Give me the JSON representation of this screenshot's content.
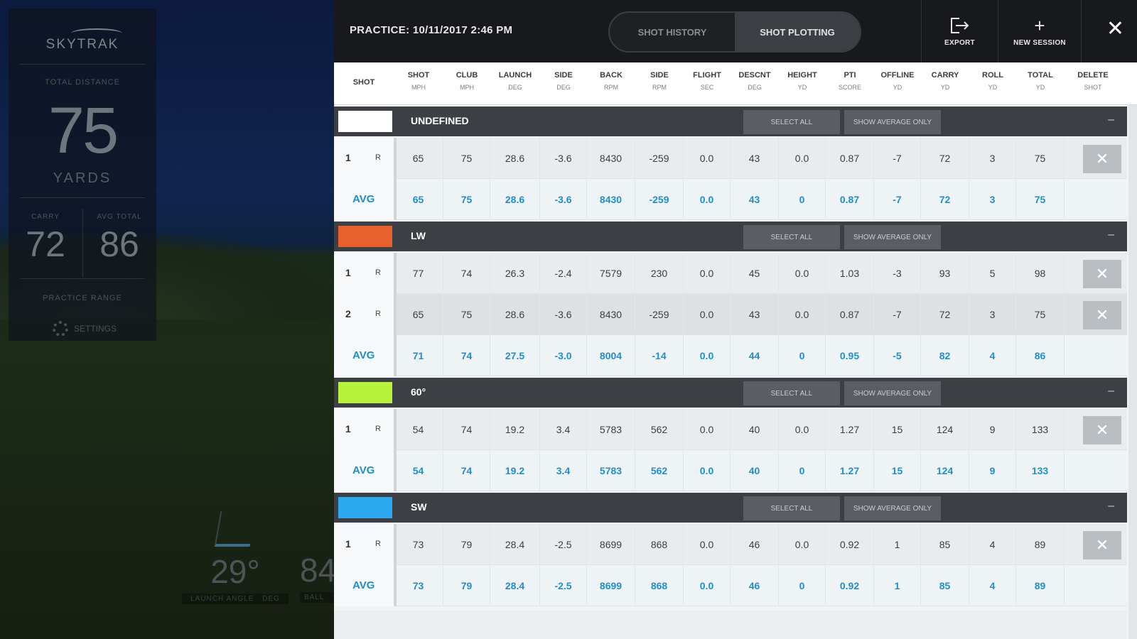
{
  "stats": {
    "logo": "SKYTRAK",
    "total_label": "TOTAL DISTANCE",
    "total_value": "75",
    "total_unit": "YARDS",
    "carry_label": "CARRY",
    "carry_value": "72",
    "avg_total_label": "AVG TOTAL",
    "avg_total_value": "86",
    "mode_label": "PRACTICE RANGE",
    "settings_label": "SETTINGS"
  },
  "dials": {
    "angle_value": "29°",
    "angle_label": "LAUNCH ANGLE · DEG",
    "second_value": "84",
    "second_label": "BALL"
  },
  "header": {
    "title": "PRACTICE: 10/11/2017 2:46 PM",
    "tab_history": "SHOT HISTORY",
    "tab_plotting": "SHOT PLOTTING",
    "export_label": "EXPORT",
    "new_session_label": "NEW SESSION",
    "export_icon": "export-icon",
    "plus_icon": "plus-icon",
    "close_icon": "close-icon"
  },
  "columns": [
    {
      "title": "SHOT",
      "unit": ""
    },
    {
      "title": "SHOT",
      "unit": "MPH"
    },
    {
      "title": "CLUB",
      "unit": "MPH"
    },
    {
      "title": "LAUNCH",
      "unit": "DEG"
    },
    {
      "title": "SIDE",
      "unit": "DEG"
    },
    {
      "title": "BACK",
      "unit": "RPM"
    },
    {
      "title": "SIDE",
      "unit": "RPM"
    },
    {
      "title": "FLIGHT",
      "unit": "SEC"
    },
    {
      "title": "DESCNT",
      "unit": "DEG"
    },
    {
      "title": "HEIGHT",
      "unit": "YD"
    },
    {
      "title": "PTI",
      "unit": "SCORE"
    },
    {
      "title": "OFFLINE",
      "unit": "YD"
    },
    {
      "title": "CARRY",
      "unit": "YD"
    },
    {
      "title": "ROLL",
      "unit": "YD"
    },
    {
      "title": "TOTAL",
      "unit": "YD"
    },
    {
      "title": "DELETE",
      "unit": "SHOT"
    }
  ],
  "group_buttons": {
    "select_all": "SELECT ALL",
    "show_average": "SHOW AVERAGE ONLY",
    "collapse": "–"
  },
  "groups": [
    {
      "name": "UNDEFINED",
      "color": "#ffffff",
      "shots": [
        {
          "num": "1",
          "hand": "R",
          "values": [
            "65",
            "75",
            "28.6",
            "-3.6",
            "8430",
            "-259",
            "0.0",
            "43",
            "0.0",
            "0.87",
            "-7",
            "72",
            "3",
            "75"
          ]
        }
      ],
      "avg": {
        "label": "AVG",
        "values": [
          "65",
          "75",
          "28.6",
          "-3.6",
          "8430",
          "-259",
          "0.0",
          "43",
          "0",
          "0.87",
          "-7",
          "72",
          "3",
          "75"
        ]
      }
    },
    {
      "name": "LW",
      "color": "#e8602c",
      "shots": [
        {
          "num": "1",
          "hand": "R",
          "values": [
            "77",
            "74",
            "26.3",
            "-2.4",
            "7579",
            "230",
            "0.0",
            "45",
            "0.0",
            "1.03",
            "-3",
            "93",
            "5",
            "98"
          ]
        },
        {
          "num": "2",
          "hand": "R",
          "values": [
            "65",
            "75",
            "28.6",
            "-3.6",
            "8430",
            "-259",
            "0.0",
            "43",
            "0.0",
            "0.87",
            "-7",
            "72",
            "3",
            "75"
          ]
        }
      ],
      "avg": {
        "label": "AVG",
        "values": [
          "71",
          "74",
          "27.5",
          "-3.0",
          "8004",
          "-14",
          "0.0",
          "44",
          "0",
          "0.95",
          "-5",
          "82",
          "4",
          "86"
        ]
      }
    },
    {
      "name": "60°",
      "color": "#b6f23a",
      "shots": [
        {
          "num": "1",
          "hand": "R",
          "values": [
            "54",
            "74",
            "19.2",
            "3.4",
            "5783",
            "562",
            "0.0",
            "40",
            "0.0",
            "1.27",
            "15",
            "124",
            "9",
            "133"
          ]
        }
      ],
      "avg": {
        "label": "AVG",
        "values": [
          "54",
          "74",
          "19.2",
          "3.4",
          "5783",
          "562",
          "0.0",
          "40",
          "0",
          "1.27",
          "15",
          "124",
          "9",
          "133"
        ]
      }
    },
    {
      "name": "SW",
      "color": "#2aa8f0",
      "shots": [
        {
          "num": "1",
          "hand": "R",
          "values": [
            "73",
            "79",
            "28.4",
            "-2.5",
            "8699",
            "868",
            "0.0",
            "46",
            "0.0",
            "0.92",
            "1",
            "85",
            "4",
            "89"
          ]
        }
      ],
      "avg": {
        "label": "AVG",
        "values": [
          "73",
          "79",
          "28.4",
          "-2.5",
          "8699",
          "868",
          "0.0",
          "46",
          "0",
          "0.92",
          "1",
          "85",
          "4",
          "89"
        ]
      }
    }
  ],
  "delete_icon": "close-icon"
}
